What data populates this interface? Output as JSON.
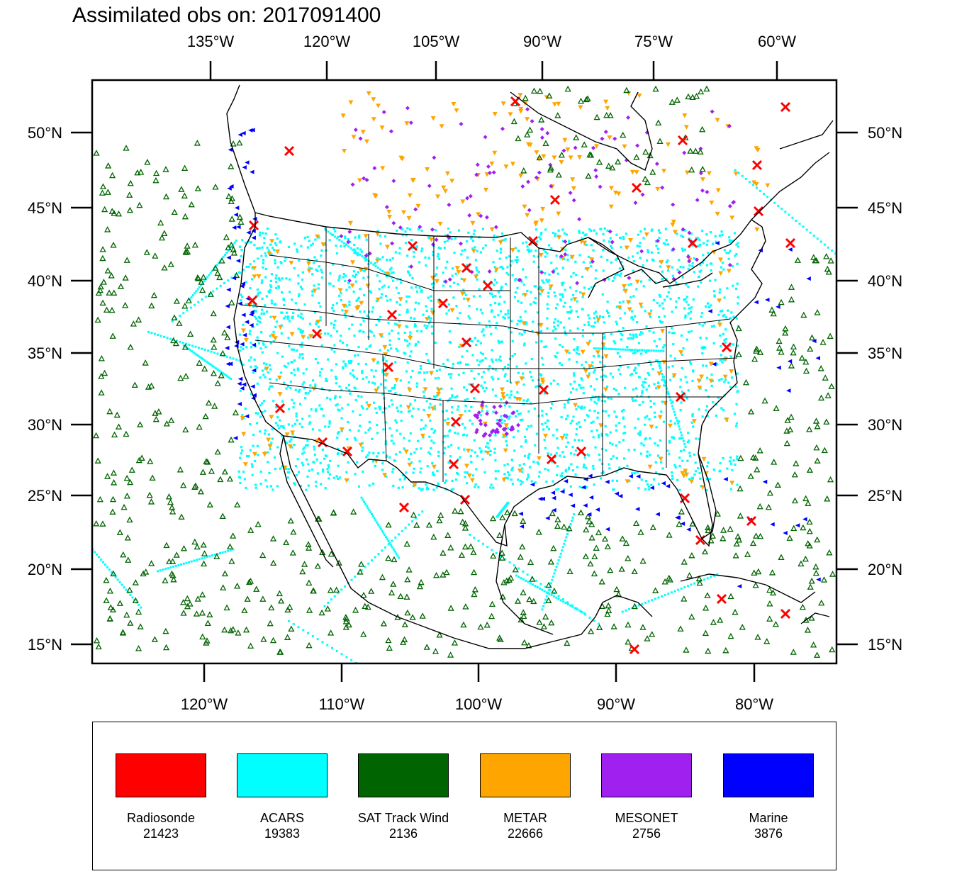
{
  "title": "Assimilated obs on: 2017091400",
  "top_lon_labels": [
    "135°W",
    "120°W",
    "105°W",
    "90°W",
    "75°W",
    "60°W"
  ],
  "bottom_lon_labels": [
    "120°W",
    "110°W",
    "100°W",
    "90°W",
    "80°W"
  ],
  "lat_labels": [
    "50°N",
    "45°N",
    "40°N",
    "35°N",
    "30°N",
    "25°N",
    "20°N",
    "15°N"
  ],
  "legend": [
    {
      "label": "Radiosonde",
      "count": "21423",
      "color": "#ff0000",
      "marker": "x"
    },
    {
      "label": "ACARS",
      "count": "19383",
      "color": "#00ffff",
      "marker": "dot"
    },
    {
      "label": "SAT Track Wind",
      "count": "2136",
      "color": "#006400",
      "marker": "triangle-up"
    },
    {
      "label": "METAR",
      "count": "22666",
      "color": "#ffa500",
      "marker": "triangle-down"
    },
    {
      "label": "MESONET",
      "count": "2756",
      "color": "#a020f0",
      "marker": "diamond"
    },
    {
      "label": "Marine",
      "count": "3876",
      "color": "#0000ff",
      "marker": "triangle-left"
    }
  ],
  "map": {
    "projection": "lambert-conformal",
    "region": "North America / CONUS",
    "lon_range": [
      -129,
      -55
    ],
    "lat_range": [
      14,
      53
    ],
    "coastline_color": "#000000"
  }
}
